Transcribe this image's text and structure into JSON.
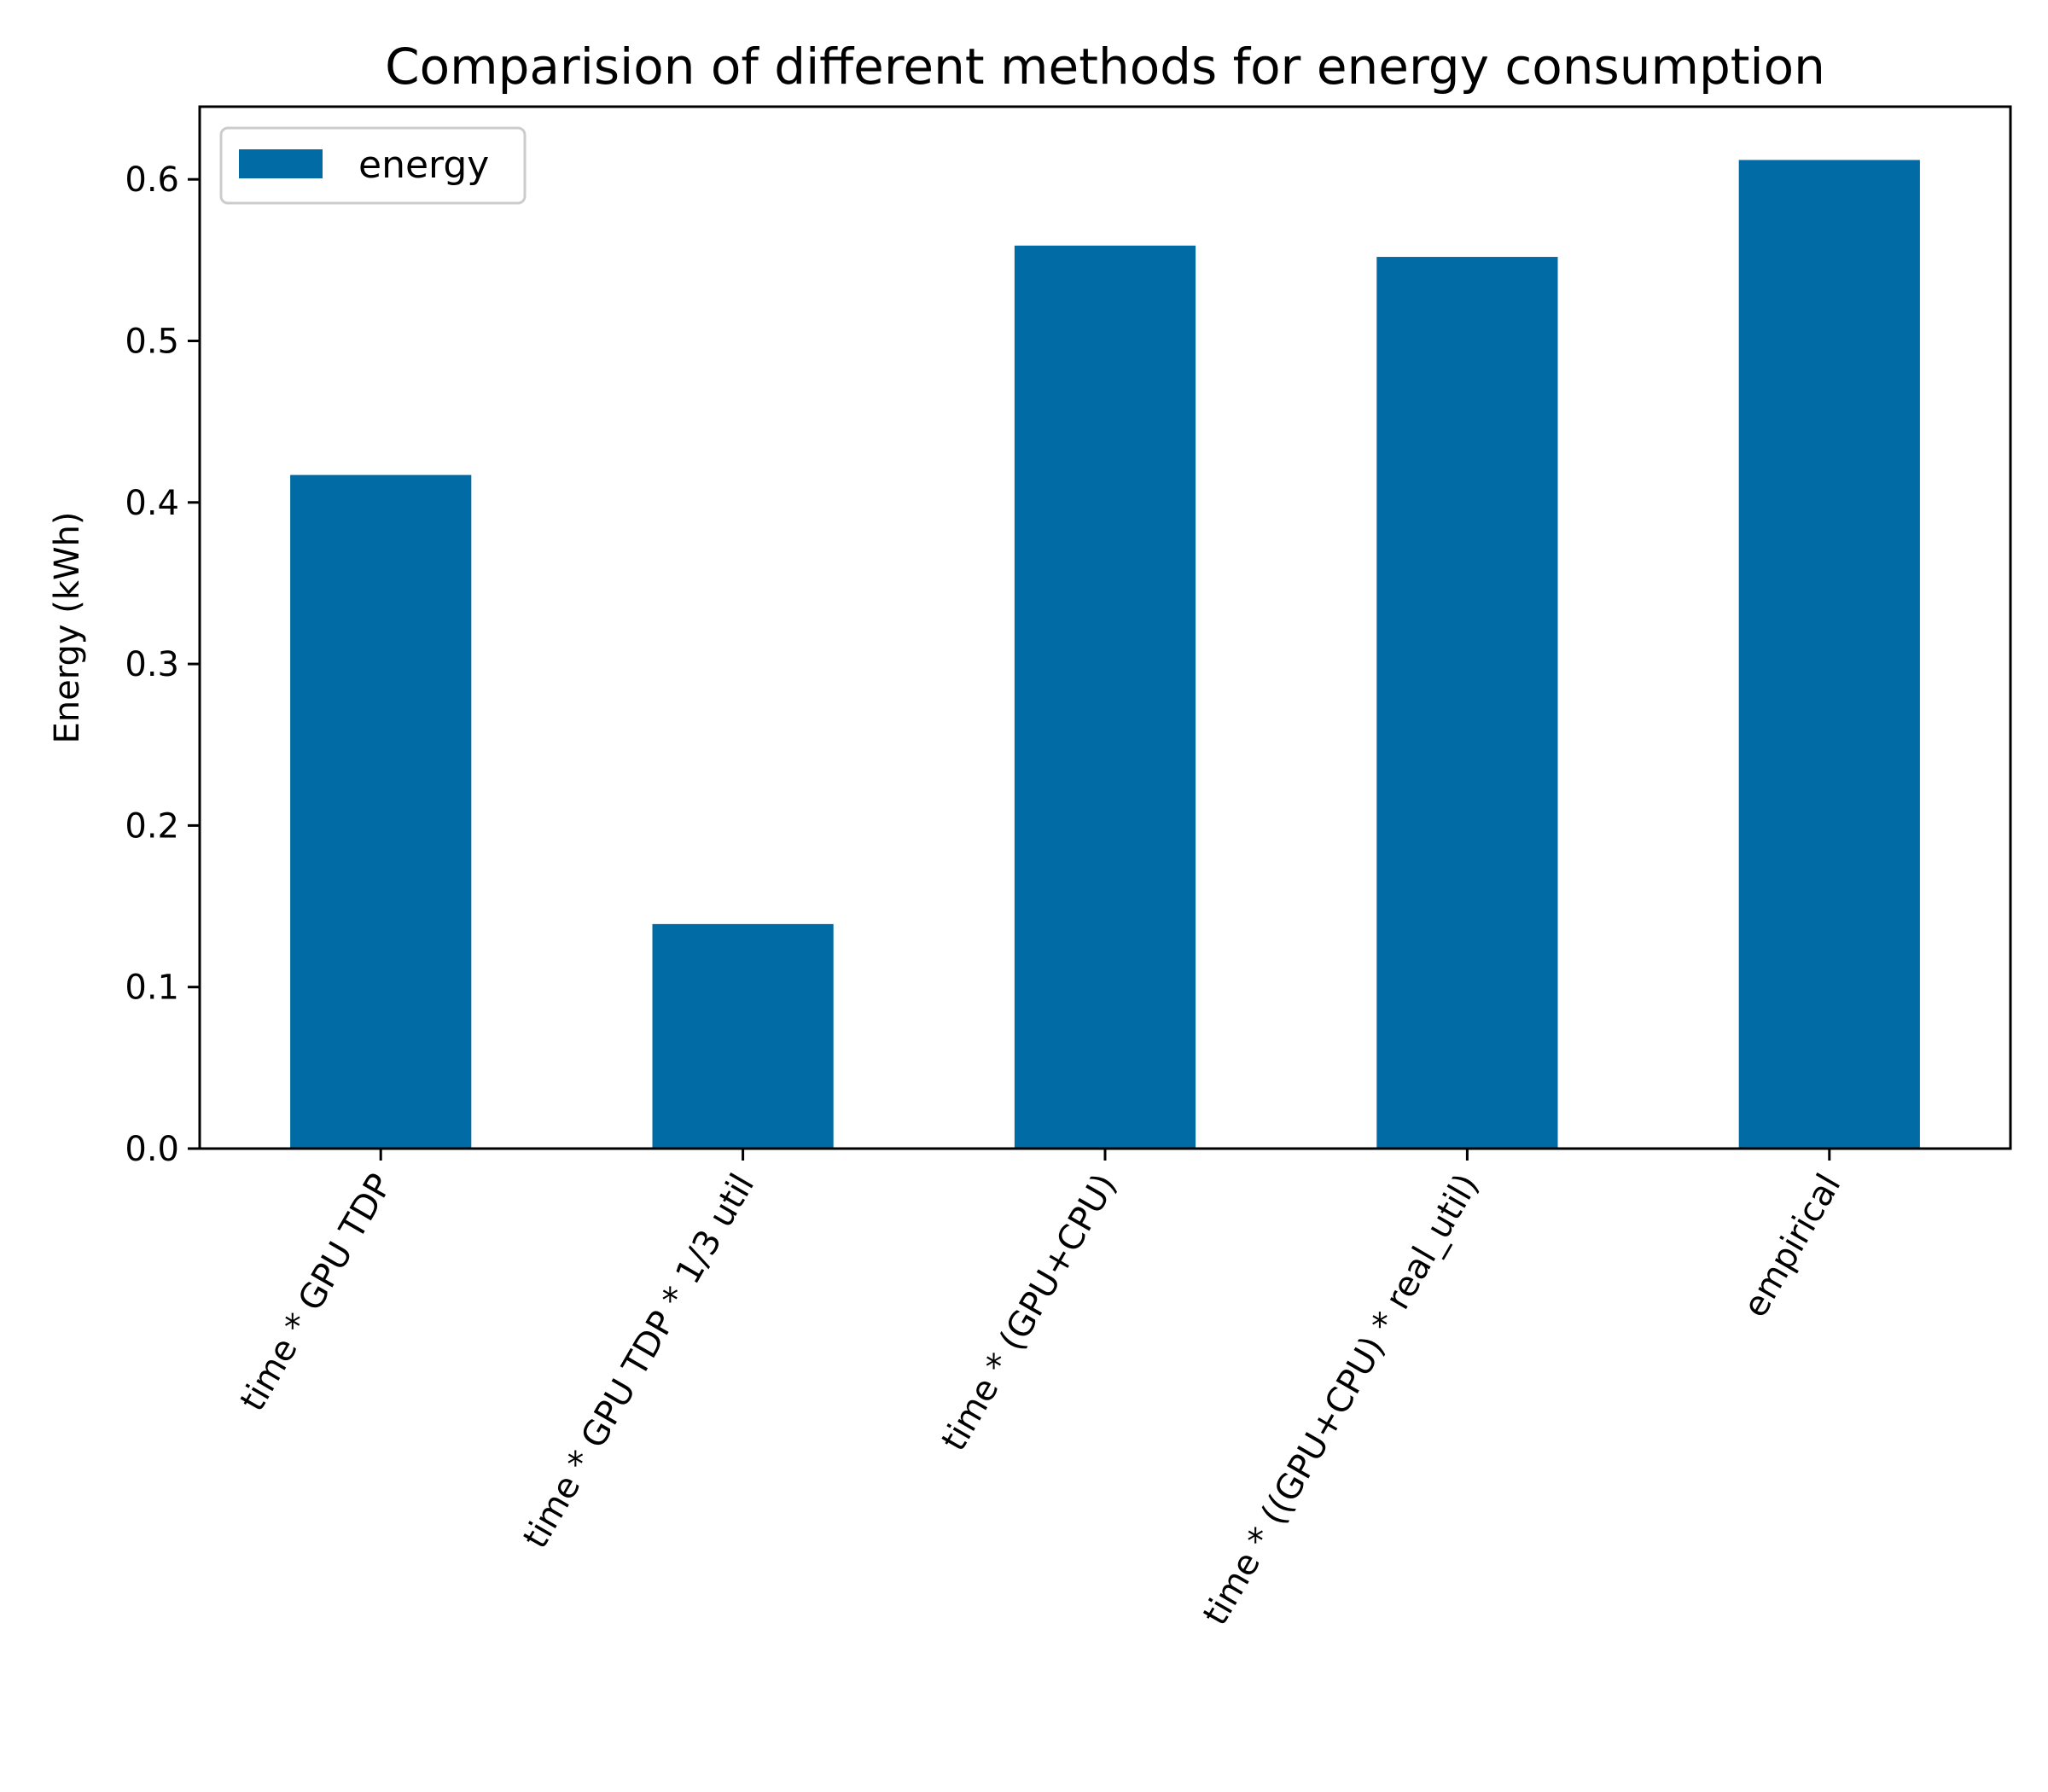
{
  "chart_data": {
    "type": "bar",
    "title": "Comparision of different methods for energy consumption",
    "xlabel": "",
    "ylabel": "Energy (kWh)",
    "categories": [
      "time * GPU TDP",
      "time * GPU TDP * 1/3 util",
      "time * (GPU+CPU)",
      "time * ((GPU+CPU) * real_util)",
      "empirical"
    ],
    "series": [
      {
        "name": "energy",
        "values": [
          0.417,
          0.139,
          0.559,
          0.552,
          0.612
        ]
      }
    ],
    "ylim": [
      0,
      0.645
    ],
    "yticks": [
      0.0,
      0.1,
      0.2,
      0.3,
      0.4,
      0.5,
      0.6
    ],
    "ytick_labels": [
      "0.0",
      "0.1",
      "0.2",
      "0.3",
      "0.4",
      "0.5",
      "0.6"
    ],
    "legend_position": "upper-left",
    "grid": false,
    "bar_color": "#006ba4"
  }
}
